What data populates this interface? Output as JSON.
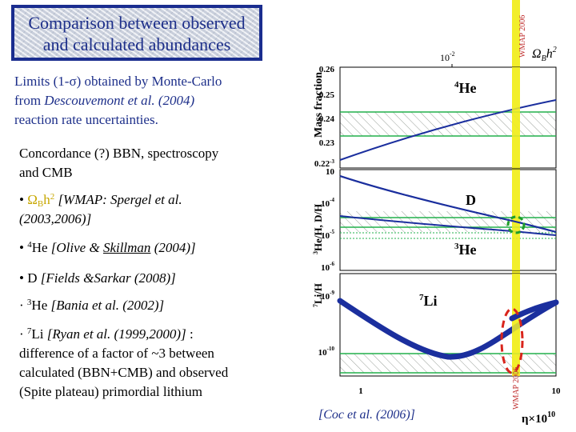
{
  "title": {
    "line1": "Comparison between observed",
    "line2": "and calculated abundances"
  },
  "limits": {
    "line1_pre": "Limits (1-",
    "sigma": "σ",
    "line1_post": ") obtained by Monte-Carlo",
    "line2_pre": "from ",
    "line2_ref": "Descouvemont et al. (2004)",
    "line3": "reaction rate uncertainties."
  },
  "concordance": {
    "line1": "Concordance (?) BBN, spectroscopy",
    "line2": "and CMB"
  },
  "bullets": {
    "wmap": {
      "bullet": "•",
      "omega": "Ω",
      "sub": "B",
      "h": "h",
      "sup": "2",
      "ref1": "[WMAP: Spergel et al.",
      "ref2": "(2003,2006)]"
    },
    "he4": {
      "bullet": "•",
      "sup": "4",
      "label": "He",
      "ref_pre": "[Olive & ",
      "ref_ul": "Skillman",
      "ref_post": " (2004)]"
    },
    "d": {
      "bullet": "•",
      "label": "D",
      "ref": "[Fields &Sarkar (2008)]"
    },
    "he3": {
      "bullet": "·",
      "sup": "3",
      "label": "He",
      "ref": "[Bania et al. (2002)]"
    },
    "li7": {
      "bullet": "·",
      "sup": "7",
      "label": "Li",
      "ref": "[Ryan et al. (1999,2000)]",
      "tail": " :",
      "line2": "difference of a factor of ~3 between",
      "line3": "calculated (BBN+CMB) and observed",
      "line4": "(Spite plateau) primordial lithium"
    }
  },
  "citation": "[Coc et al. (2006)]",
  "figure": {
    "top_axis": {
      "label": "Ω",
      "label_sub": "B",
      "label_rest": "h",
      "label_sup": "2",
      "tick": "10",
      "tick_sup": "-2"
    },
    "wmap_label": "WMAP 2006",
    "bottom_axis": {
      "label": "η×10",
      "label_sup": "10",
      "tick_left": "1",
      "tick_right": "10"
    },
    "panel_he4": {
      "ylabel": "Mass fraction",
      "species_sup": "4",
      "species": "He",
      "ticks": [
        "0.26",
        "0.25",
        "0.24",
        "0.23",
        "0.22"
      ],
      "bottom_tick": "0.22",
      "bottom_tick_exp": "-3"
    },
    "panel_dh": {
      "ylabel_sup": "3",
      "ylabel": "He/H, D/H",
      "top_tick": "10",
      "ticks": [
        "10",
        "10",
        "10"
      ],
      "tick_sups": [
        "-4",
        "-5",
        "-6"
      ],
      "species_d": "D",
      "species_he3_sup": "3",
      "species_he3": "He"
    },
    "panel_li": {
      "ylabel_sup": "7",
      "ylabel": "Li/H",
      "ticks": [
        "10",
        "10"
      ],
      "tick_sups": [
        "-9",
        "-10"
      ],
      "species_sup": "7",
      "species": "Li"
    },
    "colors": {
      "curve": "#1b2f9e",
      "observation_band": "#22b14c",
      "wmap_band": "#f2ee2a",
      "highlight_green": "#1f9e2a",
      "highlight_red": "#d9251c",
      "title_border": "#1a2d8f"
    }
  }
}
